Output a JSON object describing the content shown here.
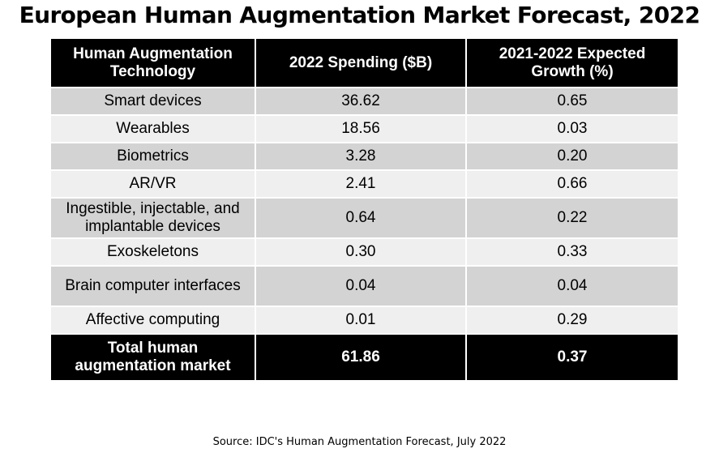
{
  "chart_data": {
    "type": "table",
    "title": "European Human Augmentation Market Forecast, 2022",
    "columns": [
      "Human Augmentation Technology",
      "2022 Spending ($B)",
      "2021-2022 Expected Growth (%)"
    ],
    "rows": [
      [
        "Smart devices",
        "36.62",
        "0.65"
      ],
      [
        "Wearables",
        "18.56",
        "0.03"
      ],
      [
        "Biometrics",
        "3.28",
        "0.20"
      ],
      [
        "AR/VR",
        "2.41",
        "0.66"
      ],
      [
        "Ingestible, injectable, and implantable devices",
        "0.64",
        "0.22"
      ],
      [
        "Exoskeletons",
        "0.30",
        "0.33"
      ],
      [
        "Brain computer interfaces",
        "0.04",
        "0.04"
      ],
      [
        "Affective computing",
        "0.01",
        "0.29"
      ]
    ],
    "total": [
      "Total human augmentation market",
      "61.86",
      "0.37"
    ],
    "source": "Source: IDC's Human Augmentation Forecast, July 2022"
  }
}
